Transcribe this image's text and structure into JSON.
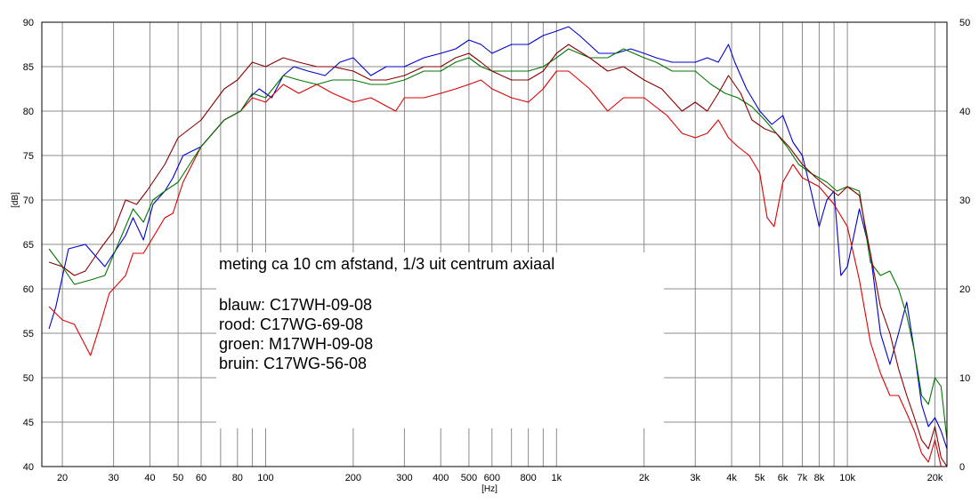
{
  "chart_data": {
    "type": "line",
    "xlabel": "[Hz]",
    "ylabel": "[dB]",
    "x_scale": "log",
    "xlim": [
      17,
      22000
    ],
    "ylim": [
      40,
      90
    ],
    "y2lim": [
      0,
      50
    ],
    "grid": true,
    "x_ticks": [
      {
        "v": 20,
        "label": "20"
      },
      {
        "v": 30,
        "label": "30"
      },
      {
        "v": 40,
        "label": "40"
      },
      {
        "v": 50,
        "label": "50"
      },
      {
        "v": 60,
        "label": "60"
      },
      {
        "v": 80,
        "label": "80"
      },
      {
        "v": 100,
        "label": "100"
      },
      {
        "v": 200,
        "label": "200"
      },
      {
        "v": 300,
        "label": "300"
      },
      {
        "v": 400,
        "label": "400"
      },
      {
        "v": 500,
        "label": "500"
      },
      {
        "v": 600,
        "label": "600"
      },
      {
        "v": 800,
        "label": "800"
      },
      {
        "v": 1000,
        "label": "1k"
      },
      {
        "v": 2000,
        "label": "2k"
      },
      {
        "v": 3000,
        "label": "3k"
      },
      {
        "v": 4000,
        "label": "4k"
      },
      {
        "v": 5000,
        "label": "5k"
      },
      {
        "v": 6000,
        "label": "6k"
      },
      {
        "v": 7000,
        "label": "7k"
      },
      {
        "v": 8000,
        "label": "8k"
      },
      {
        "v": 10000,
        "label": "10k"
      },
      {
        "v": 20000,
        "label": "20k"
      }
    ],
    "y_ticks": [
      "40",
      "45",
      "50",
      "55",
      "60",
      "65",
      "70",
      "75",
      "80",
      "85",
      "90"
    ],
    "y2_ticks": [
      "0",
      "10",
      "20",
      "30",
      "40",
      "50"
    ],
    "annotation": {
      "title": "meting ca 10 cm afstand, 1/3 uit centrum axiaal",
      "legend": [
        "blauw: C17WH-09-08",
        "rood: C17WG-69-08",
        "groen: M17WH-09-08",
        "bruin: C17WG-56-08"
      ]
    },
    "series": [
      {
        "name": "blauw: C17WH-09-08",
        "color": "#0000cc",
        "points": [
          [
            18,
            55.5
          ],
          [
            19,
            58
          ],
          [
            21,
            64.5
          ],
          [
            24,
            65
          ],
          [
            28,
            62.5
          ],
          [
            33,
            66
          ],
          [
            35,
            68
          ],
          [
            38,
            65.5
          ],
          [
            41,
            69.5
          ],
          [
            45,
            71
          ],
          [
            48,
            72.5
          ],
          [
            52,
            75
          ],
          [
            60,
            76
          ],
          [
            72,
            79
          ],
          [
            82,
            80
          ],
          [
            88,
            81.5
          ],
          [
            95,
            82.5
          ],
          [
            105,
            81.5
          ],
          [
            115,
            84
          ],
          [
            125,
            85
          ],
          [
            140,
            84.5
          ],
          [
            160,
            84
          ],
          [
            180,
            85.5
          ],
          [
            200,
            86
          ],
          [
            230,
            84
          ],
          [
            260,
            85
          ],
          [
            300,
            85
          ],
          [
            350,
            86
          ],
          [
            400,
            86.5
          ],
          [
            450,
            87
          ],
          [
            500,
            88
          ],
          [
            550,
            87.5
          ],
          [
            600,
            86.5
          ],
          [
            700,
            87.5
          ],
          [
            800,
            87.5
          ],
          [
            900,
            88.5
          ],
          [
            1000,
            89
          ],
          [
            1100,
            89.5
          ],
          [
            1200,
            88.5
          ],
          [
            1400,
            86.5
          ],
          [
            1600,
            86.5
          ],
          [
            1800,
            87
          ],
          [
            2000,
            86.5
          ],
          [
            2200,
            86
          ],
          [
            2500,
            85.5
          ],
          [
            3000,
            85.5
          ],
          [
            3300,
            86
          ],
          [
            3600,
            85.5
          ],
          [
            3900,
            87.5
          ],
          [
            4100,
            85.5
          ],
          [
            4500,
            82.5
          ],
          [
            5000,
            80
          ],
          [
            5500,
            78.5
          ],
          [
            6000,
            79.5
          ],
          [
            6500,
            76.5
          ],
          [
            7000,
            75
          ],
          [
            7500,
            71
          ],
          [
            8000,
            67
          ],
          [
            8500,
            70
          ],
          [
            9000,
            71
          ],
          [
            9500,
            61.5
          ],
          [
            10000,
            62.5
          ],
          [
            11000,
            69
          ],
          [
            12000,
            64
          ],
          [
            13000,
            55
          ],
          [
            14000,
            51.5
          ],
          [
            15000,
            55
          ],
          [
            16000,
            58.5
          ],
          [
            17000,
            53
          ],
          [
            18000,
            47
          ],
          [
            19000,
            44.5
          ],
          [
            20000,
            45.5
          ],
          [
            21000,
            44
          ],
          [
            22000,
            42
          ]
        ]
      },
      {
        "name": "rood: C17WG-69-08",
        "color": "#dd0000",
        "points": [
          [
            18,
            58
          ],
          [
            20,
            56.5
          ],
          [
            22,
            56
          ],
          [
            25,
            52.5
          ],
          [
            27,
            56
          ],
          [
            29,
            59.5
          ],
          [
            33,
            61.5
          ],
          [
            35,
            64
          ],
          [
            38,
            64
          ],
          [
            45,
            68
          ],
          [
            48,
            68.5
          ],
          [
            52,
            72
          ],
          [
            60,
            76
          ],
          [
            72,
            79
          ],
          [
            82,
            80
          ],
          [
            90,
            81.5
          ],
          [
            100,
            81
          ],
          [
            115,
            83
          ],
          [
            130,
            82
          ],
          [
            150,
            83
          ],
          [
            170,
            82
          ],
          [
            200,
            81
          ],
          [
            230,
            81.5
          ],
          [
            280,
            80
          ],
          [
            300,
            81.5
          ],
          [
            350,
            81.5
          ],
          [
            400,
            82
          ],
          [
            450,
            82.5
          ],
          [
            500,
            83
          ],
          [
            550,
            83.5
          ],
          [
            600,
            82.5
          ],
          [
            700,
            81.5
          ],
          [
            800,
            81
          ],
          [
            900,
            82.5
          ],
          [
            1000,
            84.5
          ],
          [
            1100,
            84.5
          ],
          [
            1300,
            82.5
          ],
          [
            1500,
            80
          ],
          [
            1700,
            81.5
          ],
          [
            2000,
            81.5
          ],
          [
            2400,
            79.5
          ],
          [
            2700,
            77.5
          ],
          [
            3000,
            77
          ],
          [
            3300,
            77.5
          ],
          [
            3600,
            79
          ],
          [
            3900,
            77
          ],
          [
            4200,
            76
          ],
          [
            4600,
            75
          ],
          [
            5000,
            73
          ],
          [
            5300,
            68
          ],
          [
            5600,
            67
          ],
          [
            6000,
            72
          ],
          [
            6500,
            74
          ],
          [
            7000,
            72.5
          ],
          [
            8000,
            71.5
          ],
          [
            9000,
            69.5
          ],
          [
            10000,
            67
          ],
          [
            11000,
            61
          ],
          [
            12000,
            54
          ],
          [
            13000,
            50.5
          ],
          [
            14000,
            48
          ],
          [
            15000,
            48
          ],
          [
            16000,
            46
          ],
          [
            17000,
            44
          ],
          [
            18000,
            41.5
          ],
          [
            19000,
            40.5
          ],
          [
            20000,
            43
          ],
          [
            21000,
            40
          ],
          [
            22000,
            40
          ]
        ]
      },
      {
        "name": "groen: M17WH-09-08",
        "color": "#007700",
        "points": [
          [
            18,
            64.5
          ],
          [
            20,
            62.5
          ],
          [
            22,
            60.5
          ],
          [
            25,
            61
          ],
          [
            28,
            61.5
          ],
          [
            32,
            66
          ],
          [
            35,
            69
          ],
          [
            38,
            67.5
          ],
          [
            41,
            70
          ],
          [
            45,
            71
          ],
          [
            50,
            72
          ],
          [
            60,
            76
          ],
          [
            72,
            79
          ],
          [
            82,
            80
          ],
          [
            90,
            82
          ],
          [
            100,
            81.5
          ],
          [
            115,
            84
          ],
          [
            130,
            83.5
          ],
          [
            150,
            83
          ],
          [
            170,
            83.5
          ],
          [
            200,
            83.5
          ],
          [
            230,
            83
          ],
          [
            260,
            83
          ],
          [
            300,
            83.5
          ],
          [
            350,
            84.5
          ],
          [
            400,
            84.5
          ],
          [
            450,
            85.5
          ],
          [
            500,
            86
          ],
          [
            550,
            85
          ],
          [
            600,
            84.5
          ],
          [
            700,
            84.5
          ],
          [
            800,
            84.5
          ],
          [
            900,
            85
          ],
          [
            1000,
            86
          ],
          [
            1100,
            87
          ],
          [
            1300,
            86
          ],
          [
            1500,
            86
          ],
          [
            1700,
            87
          ],
          [
            2000,
            86
          ],
          [
            2200,
            85.5
          ],
          [
            2500,
            84.5
          ],
          [
            3000,
            84.5
          ],
          [
            3400,
            83
          ],
          [
            3800,
            82
          ],
          [
            4200,
            81.5
          ],
          [
            4700,
            80.5
          ],
          [
            5200,
            79
          ],
          [
            5700,
            77.5
          ],
          [
            6200,
            76
          ],
          [
            6800,
            74
          ],
          [
            7500,
            73
          ],
          [
            8500,
            72
          ],
          [
            9200,
            71
          ],
          [
            10000,
            71.5
          ],
          [
            11000,
            71
          ],
          [
            12000,
            63
          ],
          [
            13000,
            61.5
          ],
          [
            14000,
            62
          ],
          [
            15000,
            60
          ],
          [
            16000,
            57
          ],
          [
            17000,
            53
          ],
          [
            18000,
            48
          ],
          [
            19000,
            47
          ],
          [
            20000,
            50
          ],
          [
            21000,
            49
          ],
          [
            22000,
            43
          ]
        ]
      },
      {
        "name": "bruin: C17WG-56-08",
        "color": "#880000",
        "points": [
          [
            18,
            63
          ],
          [
            20,
            62.5
          ],
          [
            22,
            61.5
          ],
          [
            24,
            62
          ],
          [
            27,
            64.5
          ],
          [
            30,
            66.5
          ],
          [
            33,
            70
          ],
          [
            36,
            69.5
          ],
          [
            39,
            71
          ],
          [
            45,
            74
          ],
          [
            50,
            77
          ],
          [
            60,
            79
          ],
          [
            72,
            82.5
          ],
          [
            80,
            83.5
          ],
          [
            90,
            85.5
          ],
          [
            100,
            85
          ],
          [
            115,
            86
          ],
          [
            130,
            85.5
          ],
          [
            150,
            85
          ],
          [
            170,
            85
          ],
          [
            200,
            84.5
          ],
          [
            230,
            83.5
          ],
          [
            260,
            83.5
          ],
          [
            300,
            84
          ],
          [
            350,
            85
          ],
          [
            400,
            85
          ],
          [
            450,
            86
          ],
          [
            500,
            86.5
          ],
          [
            550,
            85.5
          ],
          [
            600,
            84.5
          ],
          [
            700,
            83.5
          ],
          [
            800,
            83.5
          ],
          [
            900,
            84.5
          ],
          [
            1000,
            86.5
          ],
          [
            1100,
            87.5
          ],
          [
            1300,
            86
          ],
          [
            1500,
            84.5
          ],
          [
            1700,
            85
          ],
          [
            2000,
            83.5
          ],
          [
            2300,
            82.5
          ],
          [
            2700,
            80
          ],
          [
            3000,
            81
          ],
          [
            3300,
            80
          ],
          [
            3600,
            82
          ],
          [
            3900,
            84
          ],
          [
            4300,
            82
          ],
          [
            4700,
            79
          ],
          [
            5200,
            78
          ],
          [
            5700,
            77.5
          ],
          [
            6300,
            76
          ],
          [
            7000,
            74
          ],
          [
            7800,
            72.5
          ],
          [
            8500,
            71.5
          ],
          [
            9300,
            70.5
          ],
          [
            10000,
            71.5
          ],
          [
            11000,
            70.5
          ],
          [
            12000,
            64
          ],
          [
            13000,
            58
          ],
          [
            14000,
            55
          ],
          [
            15000,
            51
          ],
          [
            16000,
            48
          ],
          [
            17000,
            45.5
          ],
          [
            18000,
            43
          ],
          [
            19000,
            42
          ],
          [
            20000,
            44.5
          ],
          [
            21000,
            41
          ],
          [
            22000,
            40
          ]
        ]
      }
    ]
  }
}
